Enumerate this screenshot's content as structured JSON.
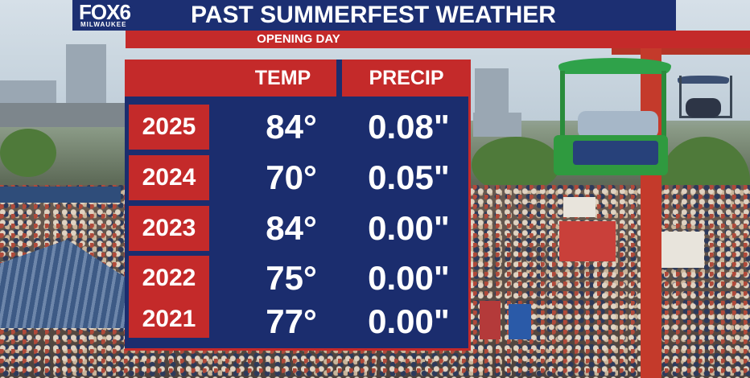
{
  "header": {
    "logo_main": "FOX6",
    "logo_sub": "MILWAUKEE",
    "title": "PAST SUMMERFEST WEATHER",
    "subtitle": "OPENING DAY"
  },
  "table": {
    "columns": [
      "",
      "TEMP",
      "PRECIP"
    ],
    "rows": [
      {
        "year": "2025",
        "temp": "84°",
        "precip": "0.08\""
      },
      {
        "year": "2024",
        "temp": "70°",
        "precip": "0.05\""
      },
      {
        "year": "2023",
        "temp": "84°",
        "precip": "0.00\""
      },
      {
        "year": "2022",
        "temp": "75°",
        "precip": "0.00\""
      },
      {
        "year": "2021",
        "temp": "77°",
        "precip": "0.00\""
      }
    ]
  },
  "colors": {
    "navy": "#1c2f72",
    "red": "#c42a2a",
    "white": "#ffffff"
  }
}
